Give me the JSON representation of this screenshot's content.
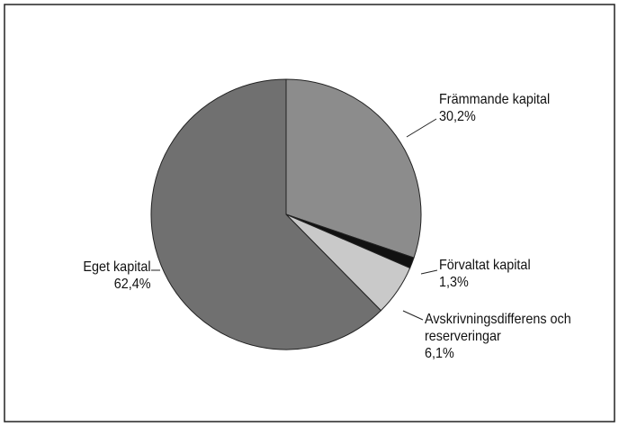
{
  "chart_data": {
    "type": "pie",
    "categories": [
      "Främmande kapital",
      "Förvaltat kapital",
      "Avskrivningsdifferens och reserveringar",
      "Eget kapital"
    ],
    "values": [
      30.2,
      1.3,
      6.1,
      62.4
    ],
    "value_labels": [
      "30,2%",
      "1,3%",
      "6,1%",
      "62,4%"
    ],
    "colors": [
      "#8c8c8c",
      "#111111",
      "#c9c9c9",
      "#707070"
    ]
  }
}
